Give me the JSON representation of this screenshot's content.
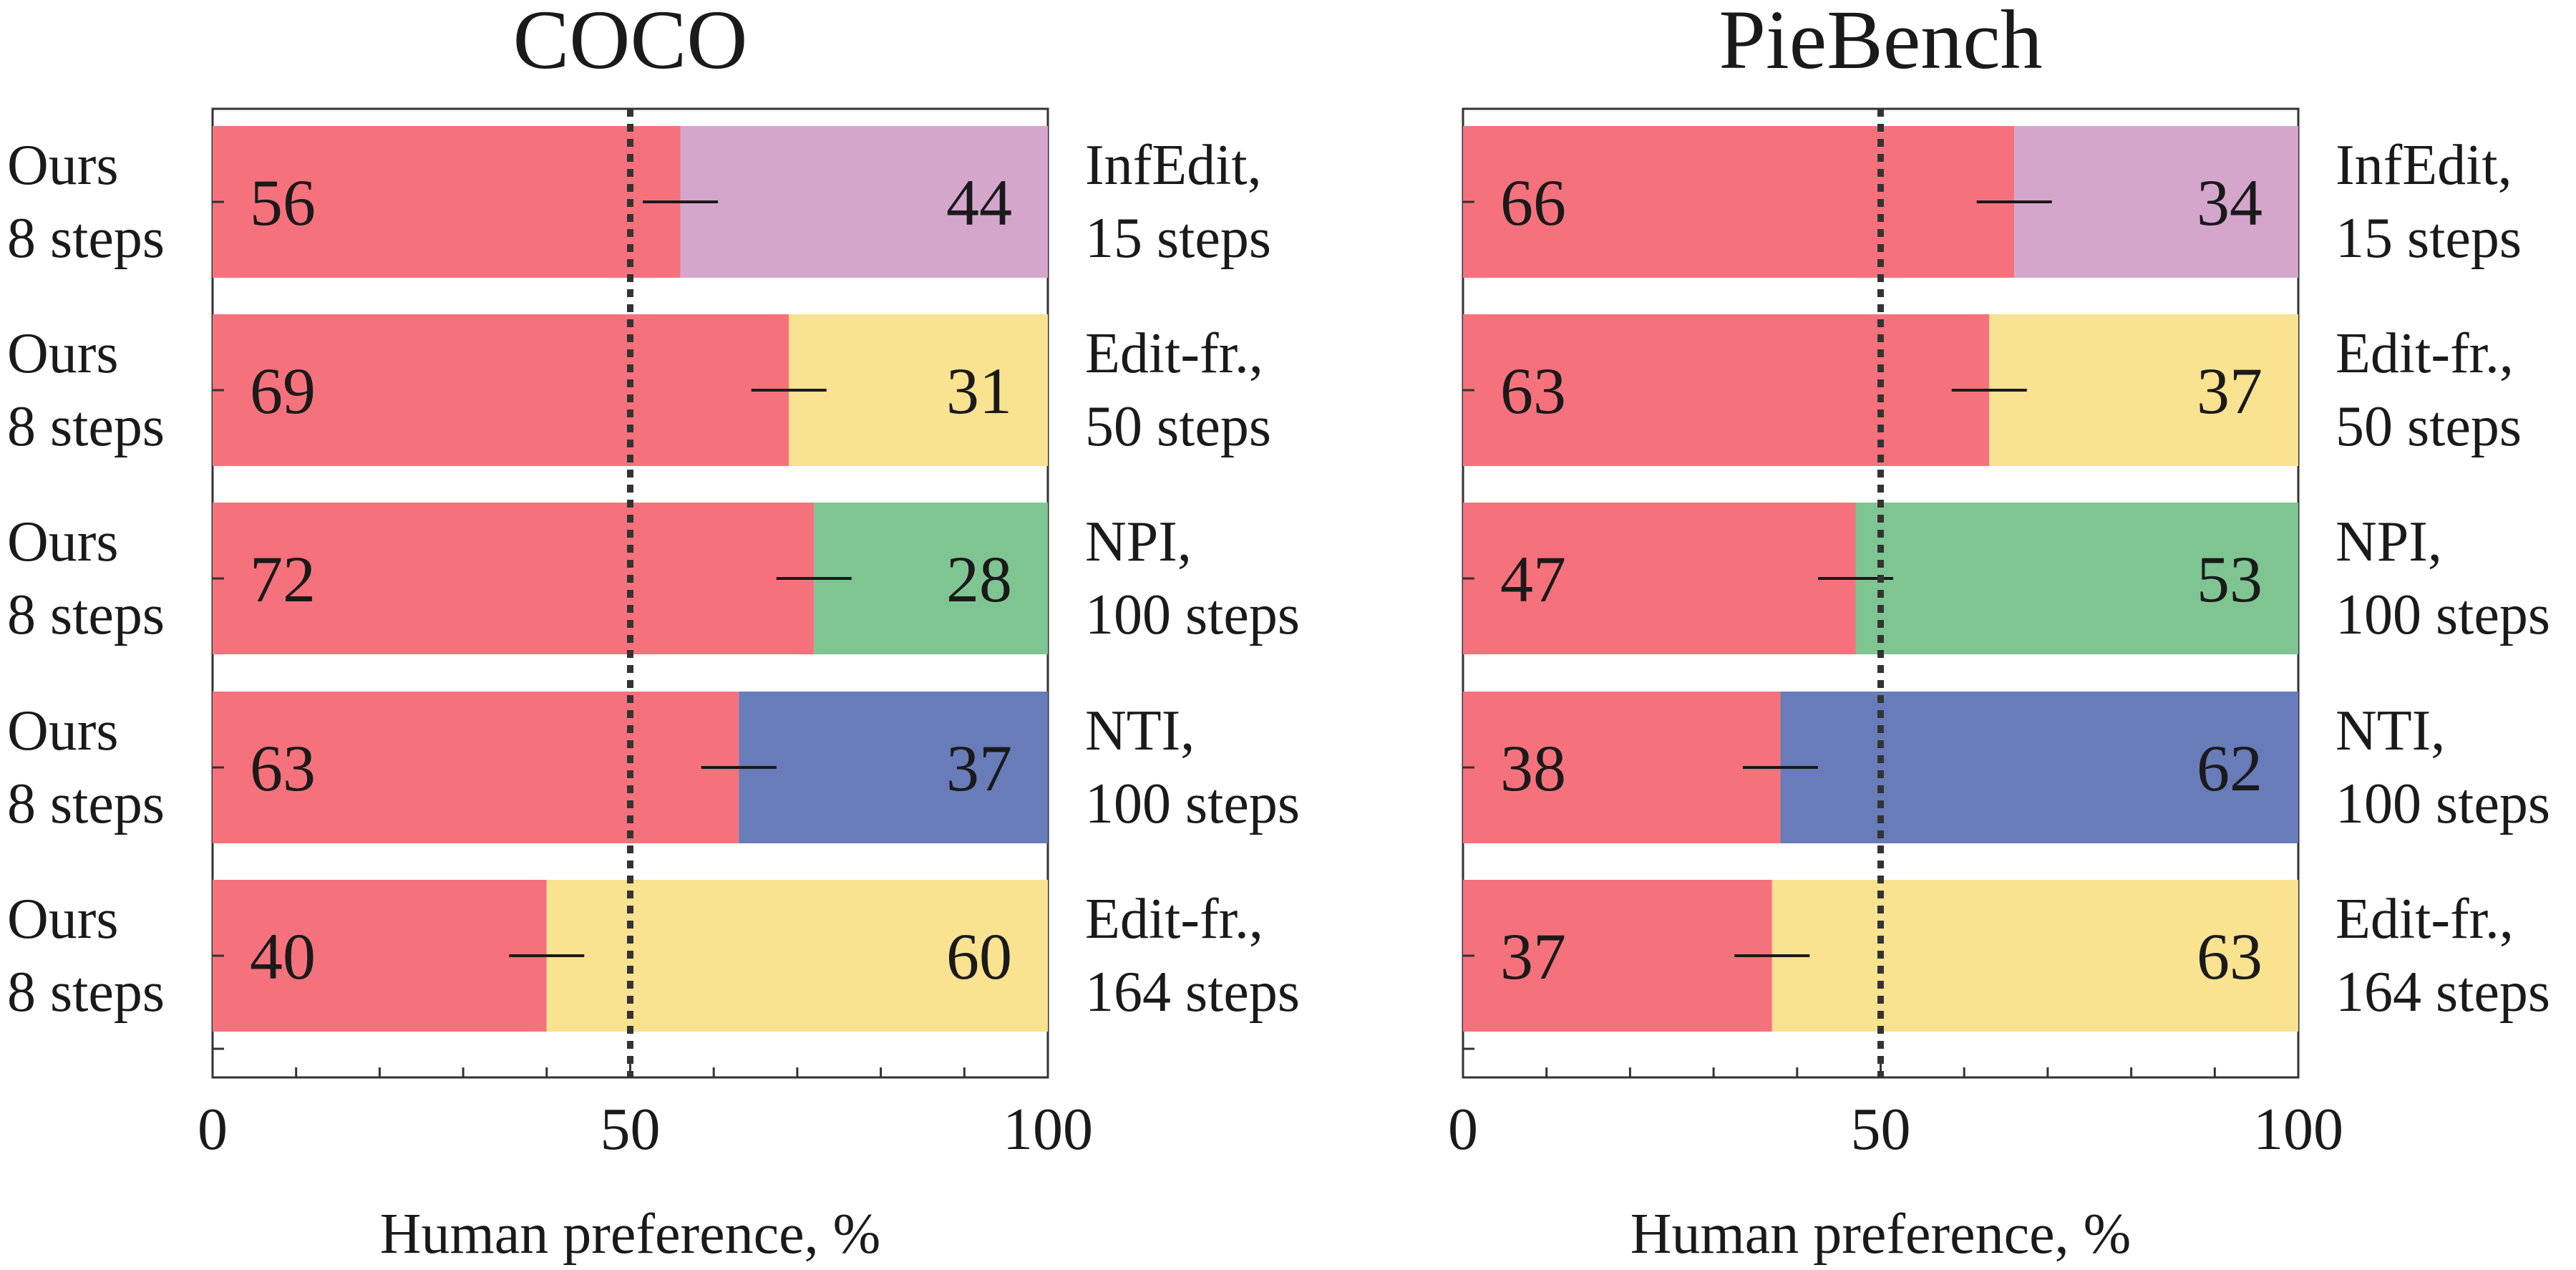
{
  "chart_data": [
    {
      "type": "bar",
      "stacked": true,
      "orientation": "horizontal",
      "title": "COCO",
      "xlabel": "Human preference, %",
      "xlim": [
        0,
        100
      ],
      "xticks": [
        "0",
        "50",
        "100"
      ],
      "reference_line": 50,
      "left_labels": [
        [
          "Ours",
          "8 steps"
        ],
        [
          "Ours",
          "8 steps"
        ],
        [
          "Ours",
          "8 steps"
        ],
        [
          "Ours",
          "8 steps"
        ],
        [
          "Ours",
          "8 steps"
        ]
      ],
      "right_labels": [
        [
          "InfEdit,",
          "15 steps"
        ],
        [
          "Edit-fr.,",
          "50 steps"
        ],
        [
          "NPI,",
          "100 steps"
        ],
        [
          "NTI,",
          "100 steps"
        ],
        [
          "Edit-fr.,",
          "164 steps"
        ]
      ],
      "ours_values": [
        56,
        69,
        72,
        63,
        40
      ],
      "other_values": [
        44,
        31,
        28,
        37,
        60
      ],
      "error_halfwidth": 4.5,
      "ours_color": "#f5727c",
      "other_colors": [
        "#d5a6cc",
        "#f9e290",
        "#7fc592",
        "#677cb9",
        "#f9e290"
      ]
    },
    {
      "type": "bar",
      "stacked": true,
      "orientation": "horizontal",
      "title": "PieBench",
      "xlabel": "Human preference, %",
      "xlim": [
        0,
        100
      ],
      "xticks": [
        "0",
        "50",
        "100"
      ],
      "reference_line": 50,
      "left_labels": [],
      "right_labels": [
        [
          "InfEdit,",
          "15 steps"
        ],
        [
          "Edit-fr.,",
          "50 steps"
        ],
        [
          "NPI,",
          "100 steps"
        ],
        [
          "NTI,",
          "100 steps"
        ],
        [
          "Edit-fr.,",
          "164 steps"
        ]
      ],
      "ours_values": [
        66,
        63,
        47,
        38,
        37
      ],
      "other_values": [
        34,
        37,
        53,
        62,
        63
      ],
      "error_halfwidth": 4.5,
      "ours_color": "#f5727c",
      "other_colors": [
        "#d5a6cc",
        "#f9e290",
        "#7fc592",
        "#677cb9",
        "#f9e290"
      ]
    }
  ]
}
